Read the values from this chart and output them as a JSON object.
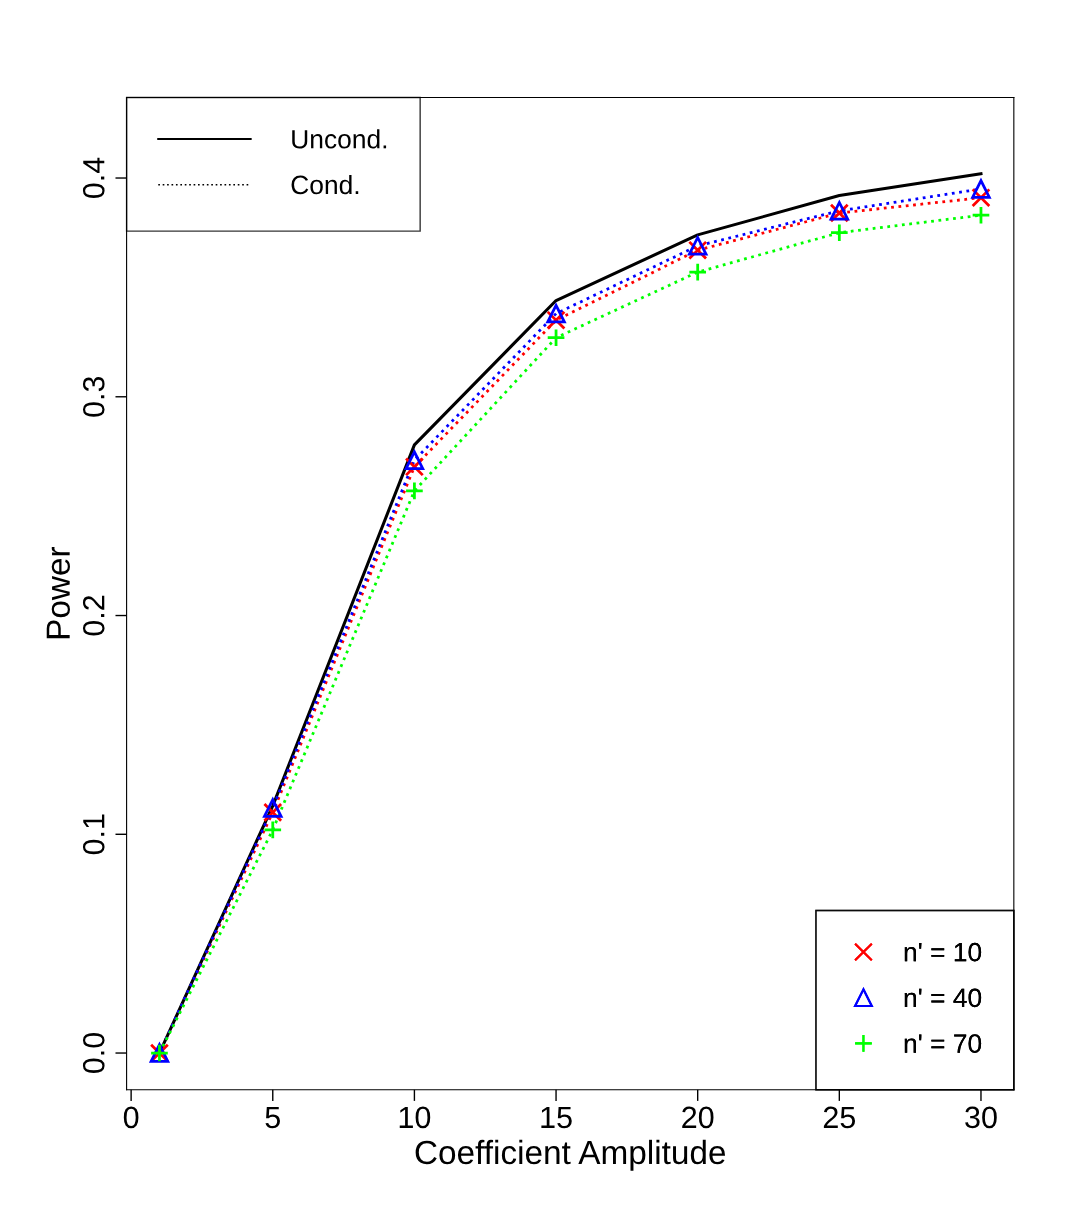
{
  "chart_data": {
    "type": "line",
    "xlabel": "Coefficient Amplitude",
    "ylabel": "Power",
    "x": [
      1,
      5,
      10,
      15,
      20,
      25,
      30
    ],
    "xlim": [
      -0.16,
      31.16
    ],
    "xticks": [
      0,
      5,
      10,
      15,
      20,
      25,
      30
    ],
    "ylim": [
      -0.0168,
      0.4368
    ],
    "yticks": [
      {
        "value": 0,
        "label": "0.0"
      },
      0.1,
      0.2,
      0.3,
      0.4
    ],
    "grid": false,
    "legend": "top left",
    "annotations": [
      "Cond."
    ],
    "series": [
      {
        "name": "Uncond.",
        "color": "#000000",
        "line_style": "solid",
        "marker": "none",
        "values": [
          0.0,
          0.113,
          0.278,
          0.344,
          0.374,
          0.392,
          0.402
        ]
      },
      {
        "name": "n' = 10",
        "color": "#ff0000",
        "line_style": "dotted",
        "marker": "cross",
        "values": [
          0.0,
          0.11,
          0.268,
          0.335,
          0.367,
          0.384,
          0.391
        ]
      },
      {
        "name": "n' = 40",
        "color": "#0000ff",
        "line_style": "dotted",
        "marker": "triangle",
        "values": [
          0.0,
          0.112,
          0.271,
          0.338,
          0.369,
          0.385,
          0.395
        ]
      },
      {
        "name": "n' = 70",
        "color": "#00ff00",
        "line_style": "dotted",
        "marker": "plus",
        "values": [
          0.0,
          0.102,
          0.257,
          0.327,
          0.357,
          0.375,
          0.383
        ]
      }
    ]
  }
}
